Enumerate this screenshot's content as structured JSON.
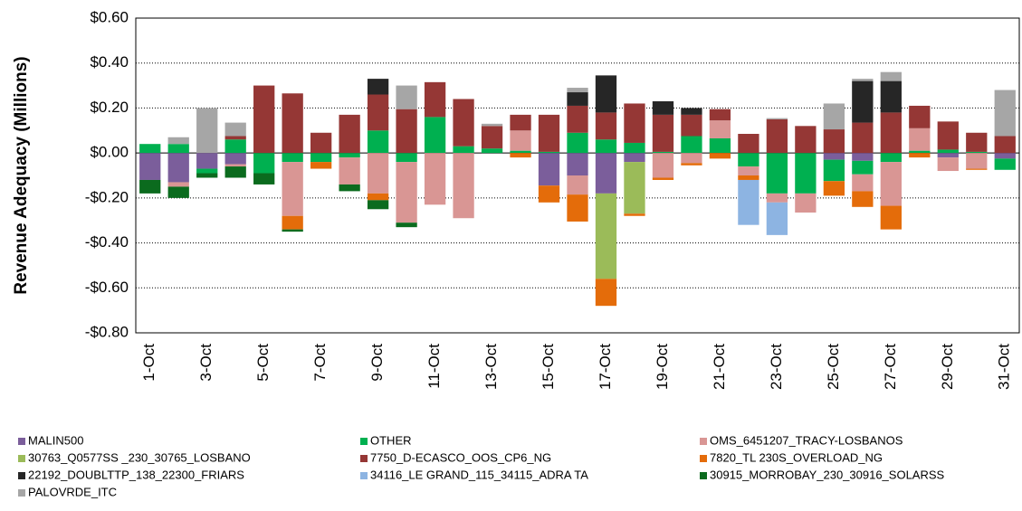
{
  "chart_data": {
    "type": "stacked-bar",
    "y_axis_label": "Revenue Adequacy (Millions)",
    "categories": [
      "1-Oct",
      null,
      "3-Oct",
      null,
      "5-Oct",
      null,
      "7-Oct",
      null,
      "9-Oct",
      null,
      "11-Oct",
      null,
      "13-Oct",
      null,
      "15-Oct",
      null,
      "17-Oct",
      null,
      "19-Oct",
      null,
      "21-Oct",
      null,
      "23-Oct",
      null,
      "25-Oct",
      null,
      "27-Oct",
      null,
      "29-Oct",
      null,
      "31-Oct"
    ],
    "ylim": [
      -0.8,
      0.6
    ],
    "yticks": [
      {
        "value": 0.6,
        "label": "$0.60"
      },
      {
        "value": 0.4,
        "label": "$0.40"
      },
      {
        "value": 0.2,
        "label": "$0.20"
      },
      {
        "value": 0,
        "label": "$0.00"
      },
      {
        "value": -0.2,
        "label": "-$0.20"
      },
      {
        "value": -0.4,
        "label": "-$0.40"
      },
      {
        "value": -0.6,
        "label": "-$0.60"
      },
      {
        "value": -0.8,
        "label": "-$0.80"
      }
    ],
    "grid": true,
    "series": [
      {
        "name": "MALIN500",
        "color": "#7b5e9b",
        "values": [
          -0.12,
          -0.13,
          -0.07,
          -0.05,
          0,
          0,
          0,
          0,
          0,
          0,
          0,
          0,
          0,
          0,
          -0.145,
          -0.1,
          -0.18,
          -0.04,
          0,
          0,
          0,
          0,
          0,
          0,
          -0.03,
          -0.035,
          0,
          0,
          -0.02,
          0,
          -0.025
        ]
      },
      {
        "name": "OTHER",
        "color": "#00b050",
        "values": [
          0.04,
          0.04,
          -0.02,
          0.06,
          -0.09,
          -0.04,
          -0.04,
          -0.02,
          0.1,
          -0.04,
          0.16,
          0.03,
          0.02,
          0.01,
          0.005,
          0.09,
          0.06,
          0.045,
          0.005,
          0.075,
          0.065,
          -0.06,
          -0.18,
          -0.18,
          -0.095,
          -0.06,
          -0.04,
          0.01,
          0.015,
          0.005,
          -0.05
        ]
      },
      {
        "name": "OMS_6451207_TRACY-LOSBANOS",
        "color": "#d99694",
        "values": [
          0,
          -0.02,
          0,
          -0.01,
          0,
          -0.24,
          0,
          -0.12,
          -0.18,
          -0.27,
          -0.23,
          -0.29,
          0,
          0.09,
          0,
          -0.085,
          0,
          0,
          -0.11,
          -0.045,
          0.08,
          -0.04,
          -0.04,
          -0.085,
          0,
          -0.075,
          -0.195,
          0.1,
          -0.06,
          -0.07,
          0
        ]
      },
      {
        "name": "30763_Q0577SS _230_30765_LOSBANO",
        "color": "#9bbb59",
        "values": [
          0,
          0,
          0,
          0,
          0,
          0,
          0,
          0,
          0,
          0,
          0,
          0,
          0,
          0,
          0,
          0,
          -0.38,
          -0.23,
          0,
          0,
          0,
          0,
          0,
          0,
          0,
          0,
          0,
          0,
          0,
          0,
          0
        ]
      },
      {
        "name": "7750_D-ECASCO_OOS_CP6_NG",
        "color": "#953735",
        "values": [
          0,
          0,
          0,
          0.015,
          0.3,
          0.265,
          0.09,
          0.17,
          0.16,
          0.195,
          0.155,
          0.21,
          0.1,
          0.07,
          0.165,
          0.12,
          0.12,
          0.175,
          0.165,
          0.095,
          0.05,
          0.085,
          0.15,
          0.12,
          0.105,
          0.135,
          0.18,
          0.1,
          0.125,
          0.085,
          0.075
        ]
      },
      {
        "name": "7820_TL 230S_OVERLOAD_NG",
        "color": "#e46c0a",
        "values": [
          0,
          0,
          0,
          0,
          0,
          -0.06,
          -0.03,
          0,
          -0.03,
          0,
          0,
          0,
          0,
          -0.02,
          -0.075,
          -0.12,
          -0.12,
          -0.01,
          -0.01,
          -0.01,
          -0.025,
          -0.02,
          0,
          0,
          -0.065,
          -0.07,
          -0.105,
          -0.02,
          0,
          -0.005,
          0
        ]
      },
      {
        "name": "22192_DOUBLTTP_138_22300_FRIARS",
        "color": "#262626",
        "values": [
          0,
          0,
          0,
          0,
          0,
          0,
          0,
          0,
          0.07,
          0,
          0,
          0,
          0,
          0,
          0,
          0.06,
          0.165,
          0,
          0.06,
          0.03,
          0,
          0,
          0,
          0,
          0,
          0.185,
          0.14,
          0,
          0,
          0,
          0
        ]
      },
      {
        "name": "34116_LE GRAND_115_34115_ADRA TA",
        "color": "#8db4e2",
        "values": [
          0,
          0,
          0,
          0,
          0,
          0,
          0,
          0,
          0,
          0,
          0,
          0,
          0,
          0,
          0,
          0,
          0,
          0,
          0,
          0,
          0,
          -0.2,
          -0.145,
          0,
          0,
          0,
          0,
          0,
          0,
          0,
          0
        ]
      },
      {
        "name": "30915_MORROBAY_230_30916_SOLARSS",
        "color": "#0b6b1e",
        "values": [
          -0.06,
          -0.05,
          -0.02,
          -0.05,
          -0.05,
          -0.01,
          0,
          -0.03,
          -0.04,
          -0.02,
          0,
          0,
          0,
          0,
          0,
          0,
          0,
          0,
          0,
          0,
          0,
          0,
          0,
          0,
          0,
          0,
          0,
          0,
          0,
          0,
          0
        ]
      },
      {
        "name": "PALOVRDE_ITC",
        "color": "#a6a6a6",
        "values": [
          0,
          0.03,
          0.2,
          0.06,
          0,
          0,
          0,
          0,
          0,
          0.105,
          0,
          0,
          0.01,
          0,
          0,
          0.02,
          0,
          0,
          0,
          0,
          0,
          0,
          0.005,
          0,
          0.115,
          0.01,
          0.04,
          0,
          0,
          0,
          0.205
        ]
      }
    ]
  }
}
